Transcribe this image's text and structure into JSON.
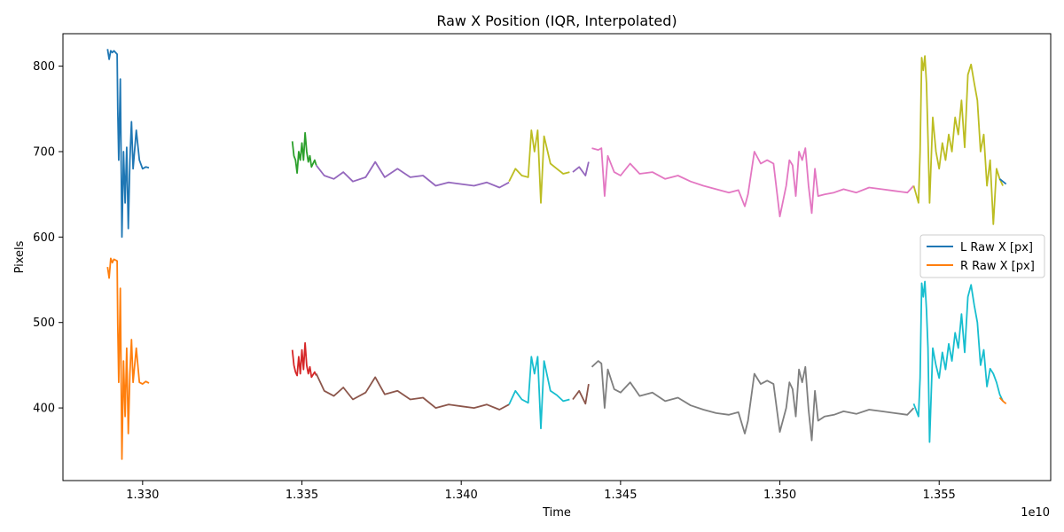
{
  "chart_data": {
    "type": "line",
    "title": "Raw X Position (IQR, Interpolated)",
    "xlabel": "Time",
    "ylabel": "Pixels",
    "x_offset_label": "1e10",
    "xlim": [
      1.3275,
      1.3585
    ],
    "ylim": [
      315,
      838
    ],
    "x_ticks": [
      1.33,
      1.335,
      1.34,
      1.345,
      1.35,
      1.355
    ],
    "x_tick_labels": [
      "1.330",
      "1.335",
      "1.340",
      "1.345",
      "1.350",
      "1.355"
    ],
    "y_ticks": [
      400,
      500,
      600,
      700,
      800
    ],
    "y_tick_labels": [
      "400",
      "500",
      "600",
      "700",
      "800"
    ],
    "grid": false,
    "legend": {
      "placement": "center-right",
      "entries": [
        {
          "label": "L Raw X [px]",
          "color": "#1f77b4"
        },
        {
          "label": "R Raw X [px]",
          "color": "#ff7f0e"
        }
      ]
    },
    "series": [
      {
        "color": "#1f77b4",
        "x": [
          1.3289,
          1.32895,
          1.329,
          1.32905,
          1.3291,
          1.3292,
          1.32922,
          1.32925,
          1.3293,
          1.32935,
          1.3294,
          1.32945,
          1.3295,
          1.32955,
          1.3296,
          1.32965,
          1.3297,
          1.3298,
          1.3299,
          1.33,
          1.3301,
          1.3302
        ],
        "y": [
          820,
          808,
          818,
          816,
          818,
          814,
          750,
          690,
          785,
          600,
          700,
          640,
          705,
          610,
          690,
          735,
          680,
          725,
          690,
          680,
          682,
          681
        ]
      },
      {
        "color": "#ff7f0e",
        "x": [
          1.3289,
          1.32895,
          1.329,
          1.32905,
          1.3291,
          1.3292,
          1.32922,
          1.32925,
          1.3293,
          1.32935,
          1.3294,
          1.32945,
          1.3295,
          1.32955,
          1.3296,
          1.32965,
          1.3297,
          1.3298,
          1.3299,
          1.33,
          1.3301,
          1.3302
        ],
        "y": [
          565,
          552,
          575,
          570,
          574,
          572,
          498,
          430,
          540,
          340,
          455,
          390,
          470,
          370,
          440,
          480,
          430,
          470,
          430,
          428,
          431,
          429
        ]
      },
      {
        "color": "#2ca02c",
        "x": [
          1.3347,
          1.33475,
          1.3348,
          1.33485,
          1.3349,
          1.33495,
          1.335,
          1.33505,
          1.3351,
          1.33515,
          1.3352,
          1.33525,
          1.3353,
          1.3354,
          1.33545
        ],
        "y": [
          712,
          695,
          690,
          675,
          700,
          690,
          710,
          690,
          722,
          700,
          688,
          695,
          682,
          690,
          684
        ]
      },
      {
        "color": "#d62728",
        "x": [
          1.3347,
          1.33475,
          1.3348,
          1.33485,
          1.3349,
          1.33495,
          1.335,
          1.33505,
          1.3351,
          1.33515,
          1.3352,
          1.33525,
          1.3353,
          1.3354,
          1.33545
        ],
        "y": [
          468,
          450,
          442,
          438,
          460,
          440,
          468,
          445,
          476,
          450,
          440,
          448,
          436,
          442,
          438
        ]
      },
      {
        "color": "#9467bd",
        "x": [
          1.33545,
          1.3357,
          1.336,
          1.3363,
          1.3366,
          1.337,
          1.3373,
          1.3376,
          1.338,
          1.3384,
          1.3388,
          1.3392,
          1.3396,
          1.34,
          1.3404,
          1.3408,
          1.3412,
          1.3415
        ],
        "y": [
          684,
          672,
          668,
          676,
          665,
          670,
          688,
          670,
          680,
          670,
          672,
          660,
          664,
          662,
          660,
          664,
          658,
          664
        ]
      },
      {
        "color": "#8c564b",
        "x": [
          1.33545,
          1.3357,
          1.336,
          1.3363,
          1.3366,
          1.337,
          1.3373,
          1.3376,
          1.338,
          1.3384,
          1.3388,
          1.3392,
          1.3396,
          1.34,
          1.3404,
          1.3408,
          1.3412,
          1.3415
        ],
        "y": [
          440,
          420,
          414,
          424,
          410,
          418,
          436,
          416,
          420,
          410,
          412,
          400,
          404,
          402,
          400,
          404,
          398,
          404
        ]
      },
      {
        "color": "#bcbd22",
        "x": [
          1.3415,
          1.3417,
          1.3419,
          1.3421,
          1.3422,
          1.3423,
          1.3424,
          1.3425,
          1.3426,
          1.3428,
          1.343,
          1.3432,
          1.3434
        ],
        "y": [
          665,
          680,
          672,
          670,
          725,
          700,
          725,
          640,
          718,
          686,
          680,
          674,
          676
        ]
      },
      {
        "color": "#17becf",
        "x": [
          1.3415,
          1.3417,
          1.3419,
          1.3421,
          1.3422,
          1.3423,
          1.3424,
          1.3425,
          1.3426,
          1.3428,
          1.343,
          1.3432,
          1.3434
        ],
        "y": [
          404,
          420,
          410,
          406,
          460,
          440,
          460,
          376,
          455,
          420,
          415,
          408,
          410
        ]
      },
      {
        "color": "#9467bd",
        "x": [
          1.3435,
          1.3437,
          1.3439,
          1.344
        ],
        "y": [
          676,
          682,
          672,
          688
        ]
      },
      {
        "color": "#8c564b",
        "x": [
          1.3435,
          1.3437,
          1.3439,
          1.344
        ],
        "y": [
          410,
          420,
          405,
          428
        ]
      },
      {
        "color": "#e377c2",
        "x": [
          1.3441,
          1.3443,
          1.3444,
          1.3445,
          1.3446,
          1.3448,
          1.345,
          1.3453,
          1.3456,
          1.346,
          1.3464,
          1.3468,
          1.3472,
          1.3476,
          1.348,
          1.3484,
          1.3487,
          1.3489,
          1.349,
          1.3492,
          1.3494,
          1.3496,
          1.3498,
          1.35,
          1.3502,
          1.3503,
          1.3504,
          1.3505,
          1.3506,
          1.3507,
          1.3508,
          1.3509,
          1.351,
          1.3511,
          1.3512,
          1.3514,
          1.3517,
          1.352,
          1.3524,
          1.3528,
          1.3532,
          1.3536,
          1.354,
          1.3542
        ],
        "y": [
          704,
          702,
          704,
          648,
          695,
          676,
          672,
          686,
          674,
          676,
          668,
          672,
          665,
          660,
          656,
          652,
          655,
          636,
          650,
          700,
          686,
          690,
          686,
          624,
          660,
          690,
          684,
          648,
          700,
          690,
          704,
          660,
          628,
          680,
          648,
          650,
          652,
          656,
          652,
          658,
          656,
          654,
          652,
          660
        ]
      },
      {
        "color": "#7f7f7f",
        "x": [
          1.3441,
          1.3443,
          1.3444,
          1.3445,
          1.3446,
          1.3448,
          1.345,
          1.3453,
          1.3456,
          1.346,
          1.3464,
          1.3468,
          1.3472,
          1.3476,
          1.348,
          1.3484,
          1.3487,
          1.3489,
          1.349,
          1.3492,
          1.3494,
          1.3496,
          1.3498,
          1.35,
          1.3502,
          1.3503,
          1.3504,
          1.3505,
          1.3506,
          1.3507,
          1.3508,
          1.3509,
          1.351,
          1.3511,
          1.3512,
          1.3514,
          1.3517,
          1.352,
          1.3524,
          1.3528,
          1.3532,
          1.3536,
          1.354,
          1.3542
        ],
        "y": [
          448,
          455,
          452,
          400,
          445,
          422,
          418,
          430,
          414,
          418,
          408,
          412,
          403,
          398,
          394,
          392,
          395,
          370,
          385,
          440,
          428,
          432,
          428,
          372,
          400,
          430,
          422,
          390,
          445,
          430,
          448,
          398,
          362,
          420,
          385,
          390,
          392,
          396,
          393,
          398,
          396,
          394,
          392,
          400
        ]
      },
      {
        "color": "#bcbd22",
        "x": [
          1.3542,
          1.35435,
          1.3544,
          1.35445,
          1.3545,
          1.35455,
          1.3546,
          1.35465,
          1.3547,
          1.3548,
          1.3549,
          1.355,
          1.3551,
          1.3552,
          1.3553,
          1.3554,
          1.3555,
          1.3556,
          1.3557,
          1.3558,
          1.3559,
          1.356,
          1.3561,
          1.3562,
          1.3563,
          1.3564,
          1.3565,
          1.3566,
          1.3567,
          1.3568,
          1.3569,
          1.357
        ],
        "y": [
          660,
          640,
          700,
          810,
          795,
          812,
          780,
          716,
          640,
          740,
          700,
          680,
          710,
          690,
          720,
          700,
          740,
          720,
          760,
          705,
          790,
          802,
          780,
          760,
          700,
          720,
          660,
          690,
          615,
          680,
          668,
          660
        ]
      },
      {
        "color": "#17becf",
        "x": [
          1.3542,
          1.35435,
          1.3544,
          1.35445,
          1.3545,
          1.35455,
          1.3546,
          1.35465,
          1.3547,
          1.3548,
          1.3549,
          1.355,
          1.3551,
          1.3552,
          1.3553,
          1.3554,
          1.3555,
          1.3556,
          1.3557,
          1.3558,
          1.3559,
          1.356,
          1.3561,
          1.3562,
          1.3563,
          1.3564,
          1.3565,
          1.3566,
          1.3567,
          1.3568,
          1.3569,
          1.357
        ],
        "y": [
          405,
          390,
          435,
          546,
          530,
          548,
          515,
          470,
          360,
          470,
          450,
          435,
          465,
          445,
          475,
          455,
          488,
          470,
          510,
          465,
          530,
          544,
          520,
          500,
          450,
          468,
          425,
          446,
          440,
          430,
          416,
          408
        ]
      },
      {
        "color": "#1f77b4",
        "x": [
          1.3569,
          1.357,
          1.3571
        ],
        "y": [
          668,
          665,
          662
        ]
      },
      {
        "color": "#ff7f0e",
        "x": [
          1.3569,
          1.357,
          1.3571
        ],
        "y": [
          412,
          408,
          405
        ]
      }
    ]
  }
}
